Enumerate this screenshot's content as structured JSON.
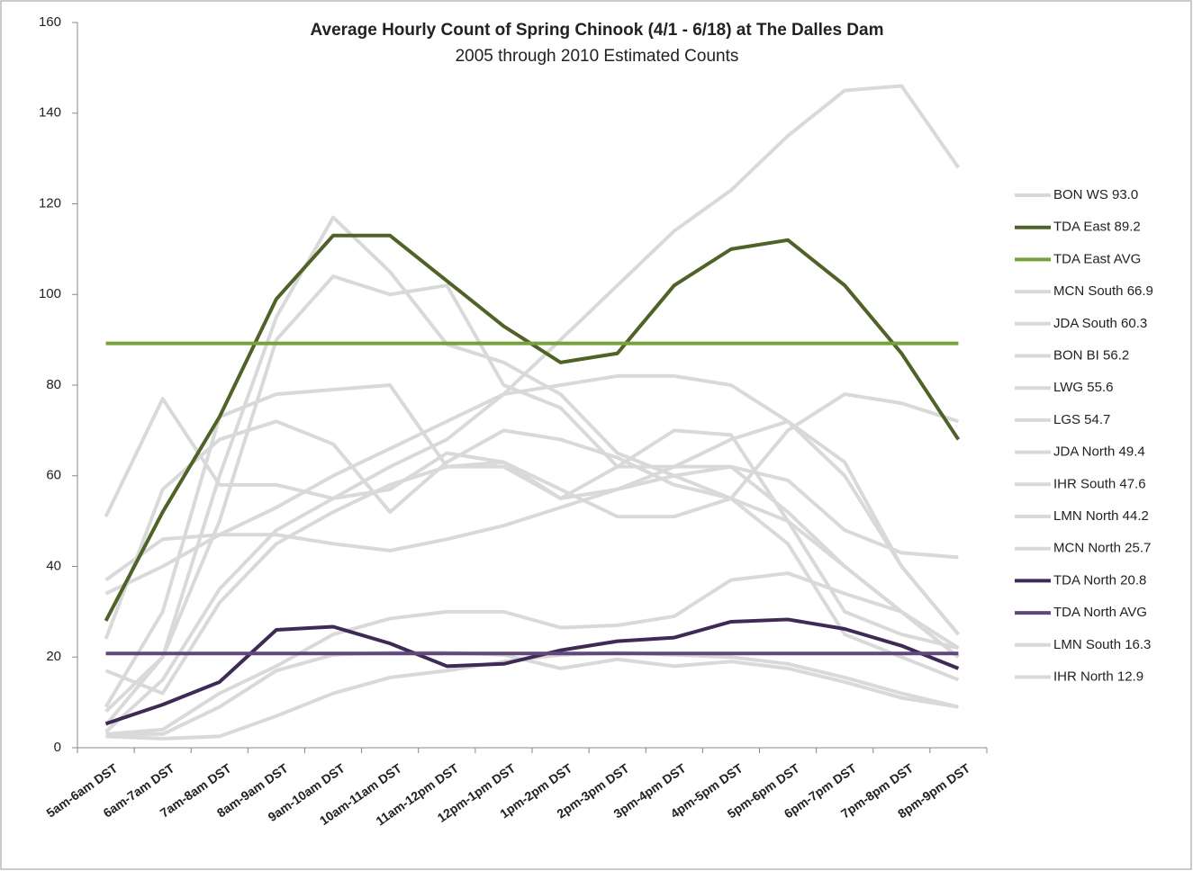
{
  "chart_data": {
    "type": "line",
    "title": "Average Hourly Count of Spring Chinook (4/1 - 6/18) at The Dalles Dam",
    "subtitle": "2005 through 2010 Estimated Counts",
    "categories": [
      "5am-6am DST",
      "6am-7am DST",
      "7am-8am DST",
      "8am-9am DST",
      "9am-10am DST",
      "10am-11am DST",
      "11am-12pm DST",
      "12pm-1pm DST",
      "1pm-2pm DST",
      "2pm-3pm DST",
      "3pm-4pm DST",
      "4pm-5pm DST",
      "5pm-6pm DST",
      "6pm-7pm DST",
      "7pm-8pm DST",
      "8pm-9pm DST"
    ],
    "ylim": [
      0,
      160
    ],
    "yticks": [
      0,
      20,
      40,
      60,
      80,
      100,
      120,
      140,
      160
    ],
    "grid": false,
    "legend": "right",
    "series": [
      {
        "name": "BON WS 93.0",
        "color": "#d9d9d9",
        "values": [
          3.5,
          15,
          35,
          48,
          55,
          62,
          68,
          78,
          90,
          102,
          114,
          123,
          135,
          145,
          146,
          128
        ]
      },
      {
        "name": "TDA East 89.2",
        "color": "#4f6228",
        "values": [
          28,
          52,
          73,
          99,
          113,
          113,
          103,
          93,
          85,
          87,
          102,
          110,
          112,
          102,
          87,
          68
        ]
      },
      {
        "name": "TDA East AVG",
        "color": "#77a13a",
        "values": [
          89.2,
          89.2,
          89.2,
          89.2,
          89.2,
          89.2,
          89.2,
          89.2,
          89.2,
          89.2,
          89.2,
          89.2,
          89.2,
          89.2,
          89.2,
          89.2
        ]
      },
      {
        "name": "MCN South 66.9",
        "color": "#d9d9d9",
        "values": [
          5,
          20,
          60,
          95,
          117,
          105,
          89,
          85,
          78,
          65,
          60,
          55,
          50,
          40,
          30,
          20
        ]
      },
      {
        "name": "JDA South 60.3",
        "color": "#d9d9d9",
        "values": [
          8,
          20,
          50,
          90,
          104,
          100,
          102,
          80,
          75,
          62,
          62,
          62,
          52,
          40,
          30,
          22
        ]
      },
      {
        "name": "BON BI 56.2",
        "color": "#d9d9d9",
        "values": [
          51,
          77,
          58,
          58,
          55,
          57,
          65,
          63,
          55,
          62,
          70,
          69,
          50,
          30,
          25,
          22
        ]
      },
      {
        "name": "LWG 55.6",
        "color": "#d9d9d9",
        "values": [
          34,
          40,
          47,
          53,
          60,
          66,
          72,
          78,
          80,
          82,
          82,
          80,
          72,
          63,
          40,
          25
        ]
      },
      {
        "name": "LGS 54.7",
        "color": "#d9d9d9",
        "values": [
          24,
          57,
          68,
          72,
          67,
          52,
          63,
          70,
          68,
          64,
          58,
          55,
          70,
          78,
          76,
          72
        ]
      },
      {
        "name": "JDA North 49.4",
        "color": "#d9d9d9",
        "values": [
          9,
          30,
          73,
          78,
          79,
          80,
          62,
          62,
          55,
          57,
          62,
          68,
          72,
          60,
          40,
          25
        ]
      },
      {
        "name": "IHR South 47.6",
        "color": "#d9d9d9",
        "values": [
          37,
          46,
          47,
          47,
          45,
          43.5,
          46,
          49,
          53,
          57,
          60,
          62,
          59,
          48,
          43,
          42
        ]
      },
      {
        "name": "LMN North 44.2",
        "color": "#d9d9d9",
        "values": [
          17,
          12,
          32,
          45,
          52,
          58,
          62,
          63,
          57,
          51,
          51,
          55,
          45,
          25,
          20,
          15
        ]
      },
      {
        "name": "MCN North 25.7",
        "color": "#d9d9d9",
        "values": [
          3,
          4,
          12,
          18,
          25,
          28.5,
          30,
          30,
          26.5,
          27,
          29,
          37,
          38.5,
          34,
          30,
          20
        ]
      },
      {
        "name": "TDA North 20.8",
        "color": "#3f2a56",
        "values": [
          5.3,
          9.5,
          14.5,
          26,
          26.7,
          23,
          18,
          18.5,
          21.5,
          23.5,
          24.3,
          27.8,
          28.3,
          26.2,
          22.5,
          17.5
        ]
      },
      {
        "name": "TDA North AVG",
        "color": "#60497a",
        "values": [
          20.8,
          20.8,
          20.8,
          20.8,
          20.8,
          20.8,
          20.8,
          20.8,
          20.8,
          20.8,
          20.8,
          20.8,
          20.8,
          20.8,
          20.8,
          20.8
        ]
      },
      {
        "name": "LMN South 16.3",
        "color": "#d9d9d9",
        "values": [
          2.5,
          2,
          2.5,
          7,
          12,
          15.5,
          17,
          19,
          20.5,
          21,
          20.5,
          20,
          18.5,
          15.5,
          12,
          9
        ]
      },
      {
        "name": "IHR North 12.9",
        "color": "#d9d9d9",
        "values": [
          3,
          3,
          9,
          17,
          20.5,
          21,
          21,
          20.5,
          17.5,
          19.5,
          18,
          19,
          17.5,
          14.5,
          11,
          9
        ]
      }
    ]
  }
}
